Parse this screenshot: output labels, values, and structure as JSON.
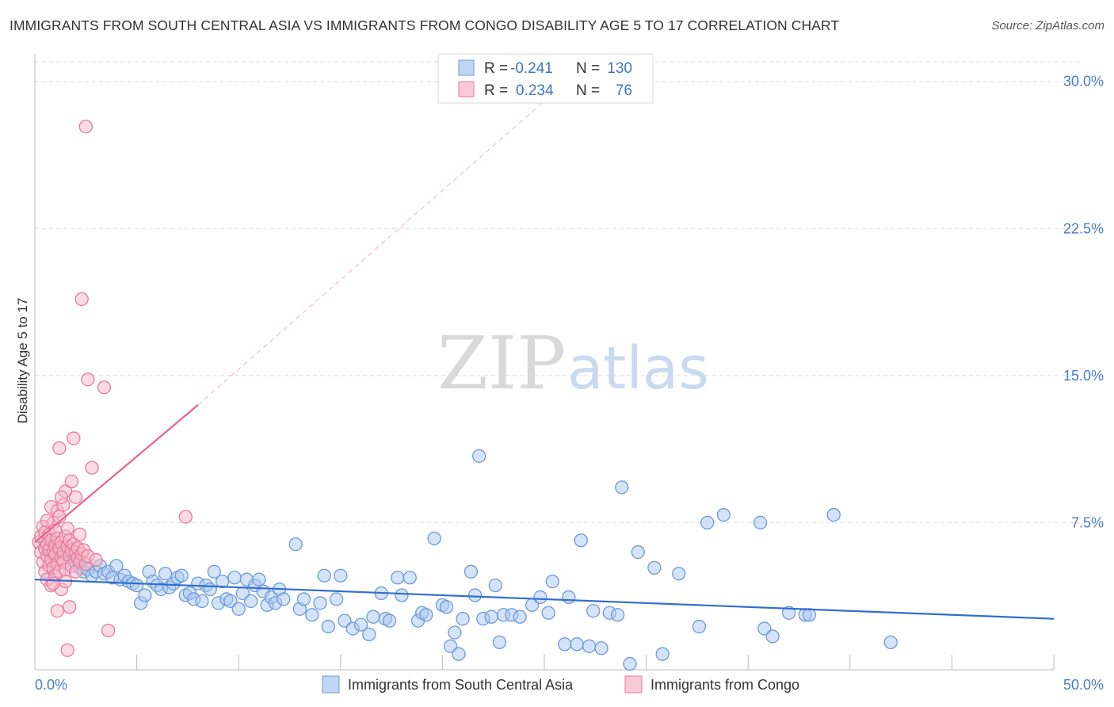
{
  "header": {
    "title": "IMMIGRANTS FROM SOUTH CENTRAL ASIA VS IMMIGRANTS FROM CONGO DISABILITY AGE 5 TO 17 CORRELATION CHART",
    "source": "Source: ZipAtlas.com"
  },
  "watermark": {
    "part1": "ZIP",
    "part2": "atlas"
  },
  "legend_box": {
    "r_label": "R =",
    "n_label": "N =",
    "rows": [
      {
        "r": "-0.241",
        "n": "130",
        "color": "#a9c8f0"
      },
      {
        "r": "0.234",
        "n": "76",
        "color": "#f5b5c8"
      }
    ]
  },
  "colors": {
    "blue_fill": "#a9c8f0",
    "blue_stroke": "#6c9ad8",
    "blue_line": "#2f6fd0",
    "pink_fill": "#f5b5c8",
    "pink_stroke": "#e87a9c",
    "pink_line": "#e8648d",
    "tick_label": "#4a7cc9",
    "grid": "#dddddd"
  },
  "chart_data": {
    "type": "scatter",
    "title": "",
    "xlabel": "",
    "ylabel": "Disability Age 5 to 17",
    "xlim": [
      0,
      50
    ],
    "ylim": [
      0,
      31
    ],
    "x_tick_labels": [
      "0.0%",
      "50.0%"
    ],
    "y_ticks": [
      7.5,
      15.0,
      22.5,
      30.0
    ],
    "y_tick_labels": [
      "7.5%",
      "15.0%",
      "22.5%",
      "30.0%"
    ],
    "grid": true,
    "legend": "bottom-center",
    "series": [
      {
        "name": "Immigrants from South Central Asia",
        "color": "#a9c8f0",
        "points": [
          [
            0.5,
            6.5
          ],
          [
            0.7,
            6.2
          ],
          [
            0.9,
            6.0
          ],
          [
            1.0,
            5.8
          ],
          [
            1.2,
            6.1
          ],
          [
            1.4,
            5.9
          ],
          [
            1.6,
            6.0
          ],
          [
            1.8,
            5.7
          ],
          [
            2.0,
            5.5
          ],
          [
            2.2,
            5.2
          ],
          [
            2.4,
            5.0
          ],
          [
            2.6,
            5.1
          ],
          [
            2.8,
            4.8
          ],
          [
            3.0,
            5.0
          ],
          [
            3.2,
            5.3
          ],
          [
            3.4,
            4.9
          ],
          [
            3.6,
            5.0
          ],
          [
            3.8,
            4.7
          ],
          [
            4.0,
            5.3
          ],
          [
            4.2,
            4.6
          ],
          [
            4.4,
            4.8
          ],
          [
            4.6,
            4.5
          ],
          [
            4.8,
            4.4
          ],
          [
            5.0,
            4.3
          ],
          [
            5.2,
            3.4
          ],
          [
            5.4,
            3.8
          ],
          [
            5.6,
            5.0
          ],
          [
            5.8,
            4.5
          ],
          [
            6.0,
            4.3
          ],
          [
            6.2,
            4.1
          ],
          [
            6.4,
            4.9
          ],
          [
            6.6,
            4.2
          ],
          [
            6.8,
            4.4
          ],
          [
            7.0,
            4.7
          ],
          [
            7.2,
            4.8
          ],
          [
            7.4,
            3.8
          ],
          [
            7.6,
            3.9
          ],
          [
            7.8,
            3.6
          ],
          [
            8.0,
            4.4
          ],
          [
            8.2,
            3.5
          ],
          [
            8.4,
            4.3
          ],
          [
            8.6,
            4.1
          ],
          [
            8.8,
            5.0
          ],
          [
            9.0,
            3.4
          ],
          [
            9.2,
            4.5
          ],
          [
            9.4,
            3.6
          ],
          [
            9.6,
            3.5
          ],
          [
            9.8,
            4.7
          ],
          [
            10.0,
            3.1
          ],
          [
            10.2,
            3.9
          ],
          [
            10.4,
            4.6
          ],
          [
            10.6,
            3.5
          ],
          [
            10.8,
            4.3
          ],
          [
            11.0,
            4.6
          ],
          [
            11.2,
            4.0
          ],
          [
            11.4,
            3.3
          ],
          [
            11.6,
            3.7
          ],
          [
            11.8,
            3.4
          ],
          [
            12.0,
            4.1
          ],
          [
            12.2,
            3.6
          ],
          [
            12.8,
            6.4
          ],
          [
            13.0,
            3.1
          ],
          [
            13.2,
            3.6
          ],
          [
            13.6,
            2.8
          ],
          [
            14.0,
            3.4
          ],
          [
            14.2,
            4.8
          ],
          [
            14.4,
            2.2
          ],
          [
            14.8,
            3.6
          ],
          [
            15.0,
            4.8
          ],
          [
            15.2,
            2.5
          ],
          [
            15.6,
            2.1
          ],
          [
            16.0,
            2.3
          ],
          [
            16.4,
            1.8
          ],
          [
            16.6,
            2.7
          ],
          [
            17.0,
            3.9
          ],
          [
            17.2,
            2.6
          ],
          [
            17.4,
            2.5
          ],
          [
            17.8,
            4.7
          ],
          [
            18.0,
            3.8
          ],
          [
            18.4,
            4.7
          ],
          [
            18.8,
            2.5
          ],
          [
            19.0,
            2.9
          ],
          [
            19.2,
            2.8
          ],
          [
            19.6,
            6.7
          ],
          [
            20.0,
            3.3
          ],
          [
            20.2,
            3.2
          ],
          [
            20.4,
            1.2
          ],
          [
            20.6,
            1.9
          ],
          [
            20.8,
            0.8
          ],
          [
            21.0,
            2.6
          ],
          [
            21.4,
            5.0
          ],
          [
            21.6,
            3.8
          ],
          [
            21.8,
            10.9
          ],
          [
            22.0,
            2.6
          ],
          [
            22.4,
            2.7
          ],
          [
            22.6,
            4.3
          ],
          [
            22.8,
            1.4
          ],
          [
            23.0,
            2.8
          ],
          [
            23.4,
            2.8
          ],
          [
            23.8,
            2.7
          ],
          [
            24.4,
            3.3
          ],
          [
            24.8,
            3.7
          ],
          [
            25.2,
            2.9
          ],
          [
            25.4,
            4.5
          ],
          [
            26.0,
            1.3
          ],
          [
            26.2,
            3.7
          ],
          [
            26.6,
            1.3
          ],
          [
            26.8,
            6.6
          ],
          [
            27.2,
            1.2
          ],
          [
            27.8,
            1.1
          ],
          [
            28.2,
            2.9
          ],
          [
            28.6,
            2.8
          ],
          [
            28.8,
            9.3
          ],
          [
            29.6,
            6.0
          ],
          [
            30.4,
            5.2
          ],
          [
            30.8,
            0.8
          ],
          [
            31.6,
            4.9
          ],
          [
            32.6,
            2.2
          ],
          [
            33.0,
            7.5
          ],
          [
            33.8,
            7.9
          ],
          [
            35.6,
            7.5
          ],
          [
            35.8,
            2.1
          ],
          [
            36.2,
            1.7
          ],
          [
            37.0,
            2.9
          ],
          [
            37.8,
            2.8
          ],
          [
            38.0,
            2.8
          ],
          [
            39.2,
            7.9
          ],
          [
            42.0,
            1.4
          ],
          [
            27.4,
            3.0
          ],
          [
            29.2,
            0.3
          ]
        ]
      },
      {
        "name": "Immigrants from Congo",
        "color": "#f5b5c8",
        "points": [
          [
            0.2,
            6.5
          ],
          [
            0.3,
            6.8
          ],
          [
            0.3,
            6.0
          ],
          [
            0.4,
            5.5
          ],
          [
            0.4,
            7.3
          ],
          [
            0.5,
            6.2
          ],
          [
            0.5,
            5.0
          ],
          [
            0.5,
            7.0
          ],
          [
            0.6,
            6.4
          ],
          [
            0.6,
            5.8
          ],
          [
            0.6,
            4.6
          ],
          [
            0.7,
            6.9
          ],
          [
            0.7,
            6.1
          ],
          [
            0.7,
            5.3
          ],
          [
            0.8,
            8.3
          ],
          [
            0.8,
            6.6
          ],
          [
            0.8,
            5.6
          ],
          [
            0.8,
            4.3
          ],
          [
            0.9,
            6.0
          ],
          [
            0.9,
            7.5
          ],
          [
            0.9,
            5.2
          ],
          [
            1.0,
            6.3
          ],
          [
            1.0,
            7.1
          ],
          [
            1.0,
            5.9
          ],
          [
            1.0,
            4.8
          ],
          [
            1.1,
            8.1
          ],
          [
            1.1,
            6.7
          ],
          [
            1.1,
            5.4
          ],
          [
            1.1,
            3.0
          ],
          [
            1.2,
            6.2
          ],
          [
            1.2,
            7.8
          ],
          [
            1.2,
            5.0
          ],
          [
            1.2,
            11.3
          ],
          [
            1.3,
            6.5
          ],
          [
            1.3,
            5.7
          ],
          [
            1.3,
            4.1
          ],
          [
            1.4,
            6.0
          ],
          [
            1.4,
            8.4
          ],
          [
            1.4,
            5.5
          ],
          [
            1.5,
            6.8
          ],
          [
            1.5,
            9.1
          ],
          [
            1.5,
            5.1
          ],
          [
            1.5,
            4.5
          ],
          [
            1.6,
            6.3
          ],
          [
            1.6,
            7.2
          ],
          [
            1.6,
            1.0
          ],
          [
            1.7,
            5.8
          ],
          [
            1.7,
            6.6
          ],
          [
            1.7,
            3.2
          ],
          [
            1.8,
            5.3
          ],
          [
            1.8,
            6.1
          ],
          [
            1.8,
            9.6
          ],
          [
            1.9,
            6.4
          ],
          [
            1.9,
            11.8
          ],
          [
            2.0,
            5.0
          ],
          [
            2.0,
            6.0
          ],
          [
            2.0,
            8.8
          ],
          [
            2.1,
            5.7
          ],
          [
            2.1,
            6.2
          ],
          [
            2.2,
            5.5
          ],
          [
            2.2,
            6.9
          ],
          [
            2.3,
            5.9
          ],
          [
            2.3,
            18.9
          ],
          [
            2.4,
            6.1
          ],
          [
            2.5,
            5.4
          ],
          [
            2.5,
            27.7
          ],
          [
            2.6,
            5.8
          ],
          [
            2.6,
            14.8
          ],
          [
            2.8,
            10.3
          ],
          [
            3.0,
            5.6
          ],
          [
            3.4,
            14.4
          ],
          [
            3.6,
            2.0
          ],
          [
            7.4,
            7.8
          ],
          [
            0.6,
            7.6
          ],
          [
            0.9,
            4.4
          ],
          [
            1.3,
            8.8
          ]
        ]
      }
    ],
    "trend_lines": [
      {
        "series": "Immigrants from South Central Asia",
        "x": [
          0,
          50
        ],
        "y": [
          4.6,
          2.6
        ],
        "style": "solid"
      },
      {
        "series": "Immigrants from Congo",
        "x": [
          0,
          8
        ],
        "y": [
          6.5,
          13.5
        ],
        "style": "solid",
        "extension_x": [
          8,
          25
        ],
        "extension_y": [
          13.5,
          29.0
        ]
      }
    ]
  }
}
